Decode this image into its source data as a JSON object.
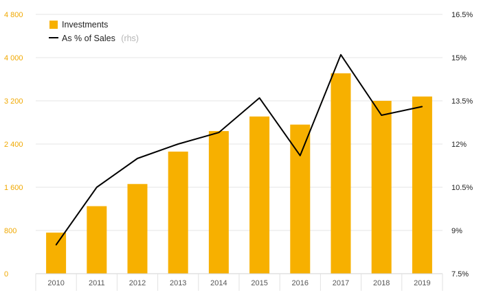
{
  "chart_data": {
    "type": "bar",
    "categories": [
      "2010",
      "2011",
      "2012",
      "2013",
      "2014",
      "2015",
      "2016",
      "2017",
      "2018",
      "2019"
    ],
    "series": [
      {
        "name": "Investments",
        "type": "bar",
        "axis": "left",
        "color": "#f7b000",
        "values": [
          760,
          1250,
          1660,
          2260,
          2640,
          2910,
          2760,
          3710,
          3200,
          3280
        ]
      },
      {
        "name": "As % of Sales",
        "type": "line",
        "axis": "right",
        "color": "#000000",
        "values": [
          8.5,
          10.5,
          11.5,
          12.0,
          12.4,
          13.6,
          11.6,
          15.1,
          13.0,
          13.3
        ]
      }
    ],
    "y_left": {
      "range": [
        0,
        4800
      ],
      "ticks": [
        "0",
        "800",
        "1 600",
        "2 400",
        "3 200",
        "4 000",
        "4 800"
      ],
      "tick_values": [
        0,
        800,
        1600,
        2400,
        3200,
        4000,
        4800
      ],
      "color": "#f0a800"
    },
    "y_right": {
      "range": [
        7.5,
        16.5
      ],
      "ticks": [
        "7.5%",
        "9%",
        "10.5%",
        "12%",
        "13.5%",
        "15%",
        "16.5%"
      ],
      "tick_values": [
        7.5,
        9,
        10.5,
        12,
        13.5,
        15,
        16.5
      ]
    },
    "legend": {
      "position": "top-left",
      "bar_label": "Investments",
      "line_label": "As % of Sales",
      "line_note": "(rhs)"
    },
    "grid": true
  }
}
